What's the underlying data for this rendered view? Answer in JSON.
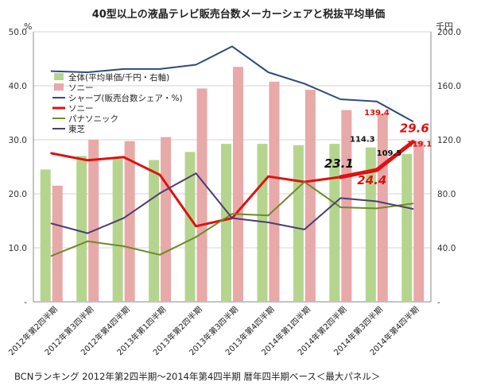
{
  "chart_data": {
    "type": "bar+line",
    "title": "40型以上の液晶テレビ販売台数メーカーシェアと税抜平均単価",
    "left_unit": "%",
    "right_unit": "千円",
    "left_ticks": [
      "50.0",
      "40.0",
      "30.0",
      "20.0",
      "10.0",
      "-"
    ],
    "right_ticks": [
      "200.0",
      "160.0",
      "120.0",
      "80.0",
      "40.0",
      "-"
    ],
    "ylim_left": [
      0,
      50
    ],
    "ylim_right": [
      0,
      200
    ],
    "categories": [
      "2012年第2四半期",
      "2012年第3四半期",
      "2012年第4四半期",
      "2013年第1四半期",
      "2013年第2四半期",
      "2013年第3四半期",
      "2013年第4四半期",
      "2014年第1四半期",
      "2014年第2四半期",
      "2014年第3四半期",
      "2014年第4四半期"
    ],
    "bar_series": [
      {
        "name": "全体(平均単価/千円・右軸)",
        "color": "#b5d58f",
        "values": [
          98,
          108,
          107,
          105,
          111,
          117,
          117,
          116,
          117,
          114.3,
          109.5
        ]
      },
      {
        "name": "ソニー",
        "color": "#e8a9a9",
        "values": [
          86,
          120,
          119,
          122,
          158,
          174,
          163,
          157,
          142,
          139.4,
          119.1
        ]
      }
    ],
    "line_series": [
      {
        "name": "シャープ(販売台数シェア・%)",
        "color": "#2e4b7c",
        "width": 2,
        "values": [
          42.7,
          42.5,
          43.1,
          43.1,
          43.9,
          47.3,
          42.5,
          40.4,
          37.5,
          37.1,
          33.4
        ]
      },
      {
        "name": "ソニー",
        "color": "#e01010",
        "width": 3,
        "values": [
          27.5,
          26.2,
          26.8,
          23.5,
          14.0,
          15.5,
          23.2,
          22.2,
          23.1,
          24.4,
          29.6
        ]
      },
      {
        "name": "パナソニック",
        "color": "#6e8a2a",
        "width": 2,
        "values": [
          8.5,
          11.2,
          10.3,
          8.7,
          12.0,
          16.3,
          16.0,
          22.2,
          17.5,
          17.3,
          18.2
        ]
      },
      {
        "name": "東芝",
        "color": "#4a3e72",
        "width": 2,
        "values": [
          14.5,
          12.7,
          15.5,
          20.1,
          23.8,
          15.5,
          14.7,
          13.4,
          19.2,
          18.6,
          17.2
        ]
      }
    ],
    "annotations": [
      {
        "text": "23.1",
        "color": "#111111",
        "size": 15,
        "italic": true
      },
      {
        "text": "24.4",
        "color": "#e01010",
        "size": 15,
        "italic": true
      },
      {
        "text": "29.6",
        "color": "#e01010",
        "size": 15,
        "italic": true
      },
      {
        "text": "139.4",
        "color": "#e01010",
        "size": 10,
        "italic": false
      },
      {
        "text": "114.3",
        "color": "#111111",
        "size": 10,
        "italic": false
      },
      {
        "text": "119.1",
        "color": "#e01010",
        "size": 10,
        "italic": false
      },
      {
        "text": "109.5",
        "color": "#111111",
        "size": 10,
        "italic": false
      }
    ],
    "grid": true,
    "legend_position": "top-left"
  },
  "footer": "BCNランキング 2012年第2四半期～2014年第4四半期 暦年四半期ベース＜最大パネル＞"
}
